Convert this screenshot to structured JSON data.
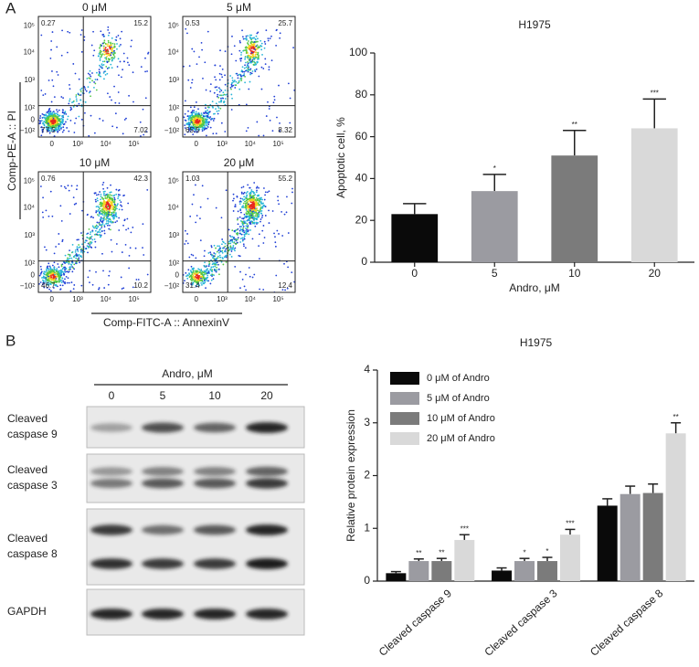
{
  "panel_labels": [
    "A",
    "B"
  ],
  "flow": {
    "ylabel": "Comp-PE-A :: PI",
    "xlabel": "Comp-FITC-A :: AnnexinV",
    "yticks": [
      "10⁵",
      "10⁴",
      "10³",
      "10²",
      "0",
      "−10²"
    ],
    "xticks": [
      "0",
      "10³",
      "10⁴",
      "10⁵"
    ],
    "plots": [
      {
        "title": "0 μM",
        "upper_left": 0.27,
        "upper_right": 15.2,
        "lower_left": 77.5,
        "lower_right": 7.02
      },
      {
        "title": "5 μM",
        "upper_left": 0.53,
        "upper_right": 25.7,
        "lower_left": 65.5,
        "lower_right": 8.32
      },
      {
        "title": "10 μM",
        "upper_left": 0.76,
        "upper_right": 42.3,
        "lower_left": 46.7,
        "lower_right": 10.2
      },
      {
        "title": "20 μM",
        "upper_left": 1.03,
        "upper_right": 55.2,
        "lower_left": 31.4,
        "lower_right": 12.4
      }
    ]
  },
  "blot": {
    "treatment": "Andro, μM",
    "lanes": [
      "0",
      "5",
      "10",
      "20"
    ],
    "rows": [
      {
        "label": [
          "Cleaved",
          "caspase 9"
        ]
      },
      {
        "label": [
          "Cleaved",
          "caspase 3"
        ]
      },
      {
        "label": [
          "Cleaved",
          "caspase 8"
        ]
      },
      {
        "label": [
          "GAPDH"
        ]
      }
    ]
  },
  "chart_data": [
    {
      "type": "bar",
      "title": "H1975",
      "xlabel": "Andro, μM",
      "ylabel": "Apoptotic cell, %",
      "categories": [
        "0",
        "5",
        "10",
        "20"
      ],
      "values": [
        23,
        34,
        51,
        64
      ],
      "errors": [
        5,
        8,
        12,
        14
      ],
      "significance": [
        null,
        "*",
        "**",
        "***"
      ],
      "colors": [
        "#0a0a0a",
        "#9b9ba1",
        "#7b7b7b",
        "#d9d9d9"
      ],
      "ylim": [
        0,
        100
      ],
      "yticks": [
        0,
        20,
        40,
        60,
        80,
        100
      ]
    },
    {
      "type": "grouped_bar",
      "title": "H1975",
      "ylabel": "Relative protein expression",
      "categories": [
        "Cleaved caspase 9",
        "Cleaved caspase 3",
        "Cleaved caspase 8"
      ],
      "series": [
        {
          "name": "0 μM of Andro",
          "color": "#0a0a0a",
          "values": [
            0.15,
            0.2,
            1.43
          ],
          "errors": [
            0.03,
            0.05,
            0.13
          ],
          "significance": [
            null,
            null,
            null
          ]
        },
        {
          "name": "5 μM of Andro",
          "color": "#9b9ba1",
          "values": [
            0.38,
            0.38,
            1.65
          ],
          "errors": [
            0.04,
            0.05,
            0.15
          ],
          "significance": [
            "**",
            "*",
            null
          ]
        },
        {
          "name": "10 μM of Andro",
          "color": "#7b7b7b",
          "values": [
            0.38,
            0.38,
            1.67
          ],
          "errors": [
            0.05,
            0.07,
            0.17
          ],
          "significance": [
            "**",
            "*",
            null
          ]
        },
        {
          "name": "20 μM of Andro",
          "color": "#d9d9d9",
          "values": [
            0.78,
            0.88,
            2.8
          ],
          "errors": [
            0.1,
            0.1,
            0.2
          ],
          "significance": [
            "***",
            "***",
            "**"
          ]
        }
      ],
      "ylim": [
        0,
        4
      ],
      "yticks": [
        0,
        1,
        2,
        3,
        4
      ],
      "legend": "top-left"
    }
  ]
}
